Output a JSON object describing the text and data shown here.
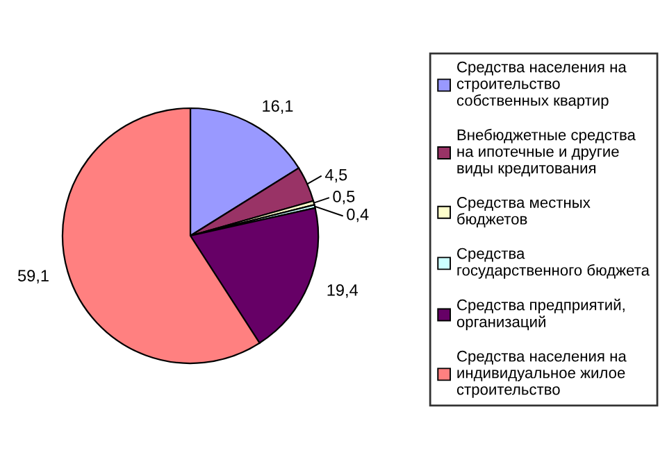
{
  "chart_data": {
    "type": "pie",
    "categories": [
      "Средства населения на\nстроительство\nсобственных квартир",
      "Внебюджетные средства\nна ипотечные и другие\nвиды кредитования",
      "Средства местных\nбюджетов",
      "Средства\nгосударственного бюджета",
      "Средства предприятий,\nорганизаций",
      "Средства населения на\nиндивидуальное жилое\nстроительство"
    ],
    "values": [
      16.1,
      4.5,
      0.5,
      0.4,
      19.4,
      59.1
    ],
    "colors": [
      "#9999ff",
      "#993366",
      "#ffffcc",
      "#ccffff",
      "#660066",
      "#ff8080"
    ],
    "value_labels": [
      "16,1",
      "4,5",
      "0,5",
      "0,4",
      "19,4",
      "59,1"
    ],
    "legend": "right"
  }
}
